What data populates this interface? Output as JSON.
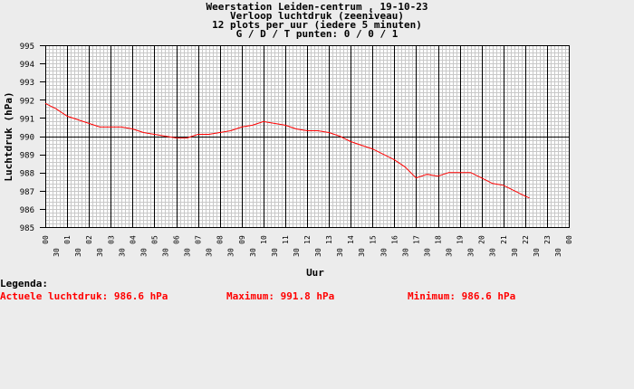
{
  "titles": [
    "Weerstation Leiden-centrum , 19-10-23",
    "Verloop luchtdruk (zeeniveau)",
    "12 plots per uur (iedere 5 minuten)",
    "G / D / T punten: 0 / 0 / 1"
  ],
  "legend": {
    "heading": "Legenda:",
    "current": "Actuele luchtdruk: 986.6 hPa",
    "maximum": "Maximum: 991.8 hPa",
    "minimum": "Minimum: 986.6 hPa"
  },
  "colors": {
    "series": "#ff0000",
    "legend_text": "#ff0000",
    "plot_bg": "#ffffff"
  },
  "chart_data": {
    "type": "line",
    "xlabel": "Uur",
    "ylabel": "Luchtdruk (hPa)",
    "xlim": [
      0,
      24
    ],
    "ylim": [
      985,
      995
    ],
    "yticks": [
      985,
      986,
      987,
      988,
      989,
      990,
      991,
      992,
      993,
      994,
      995
    ],
    "xtick_labels": [
      "00",
      "30",
      "01",
      "30",
      "02",
      "30",
      "03",
      "30",
      "04",
      "30",
      "05",
      "30",
      "06",
      "30",
      "07",
      "30",
      "08",
      "30",
      "09",
      "30",
      "10",
      "30",
      "11",
      "30",
      "12",
      "30",
      "13",
      "30",
      "14",
      "30",
      "15",
      "30",
      "16",
      "30",
      "17",
      "30",
      "18",
      "30",
      "19",
      "30",
      "20",
      "30",
      "21",
      "30",
      "22",
      "30",
      "23",
      "30",
      "00"
    ],
    "reference_line": 990,
    "grid": true,
    "series": [
      {
        "x": [
          0,
          0.5,
          1,
          1.5,
          2,
          2.5,
          3,
          3.5,
          4,
          4.5,
          5,
          5.5,
          6,
          6.5,
          7,
          7.5,
          8,
          8.5,
          9,
          9.5,
          10,
          10.5,
          11,
          11.5,
          12,
          12.5,
          13,
          13.5,
          14,
          14.5,
          15,
          15.5,
          16,
          16.5,
          17,
          17.5,
          18,
          18.5,
          19,
          19.5,
          20,
          20.5,
          21,
          21.5,
          22,
          22.2
        ],
        "y": [
          991.8,
          991.5,
          991.1,
          990.9,
          990.7,
          990.5,
          990.5,
          990.5,
          990.4,
          990.2,
          990.1,
          990.0,
          989.9,
          989.9,
          990.1,
          990.1,
          990.2,
          990.3,
          990.5,
          990.6,
          990.8,
          990.7,
          990.6,
          990.4,
          990.3,
          990.3,
          990.2,
          990.0,
          989.7,
          989.5,
          989.3,
          989.0,
          988.7,
          988.3,
          987.7,
          987.9,
          987.8,
          988.0,
          988.0,
          988.0,
          987.7,
          987.4,
          987.3,
          987.0,
          986.7,
          986.6
        ]
      }
    ]
  }
}
